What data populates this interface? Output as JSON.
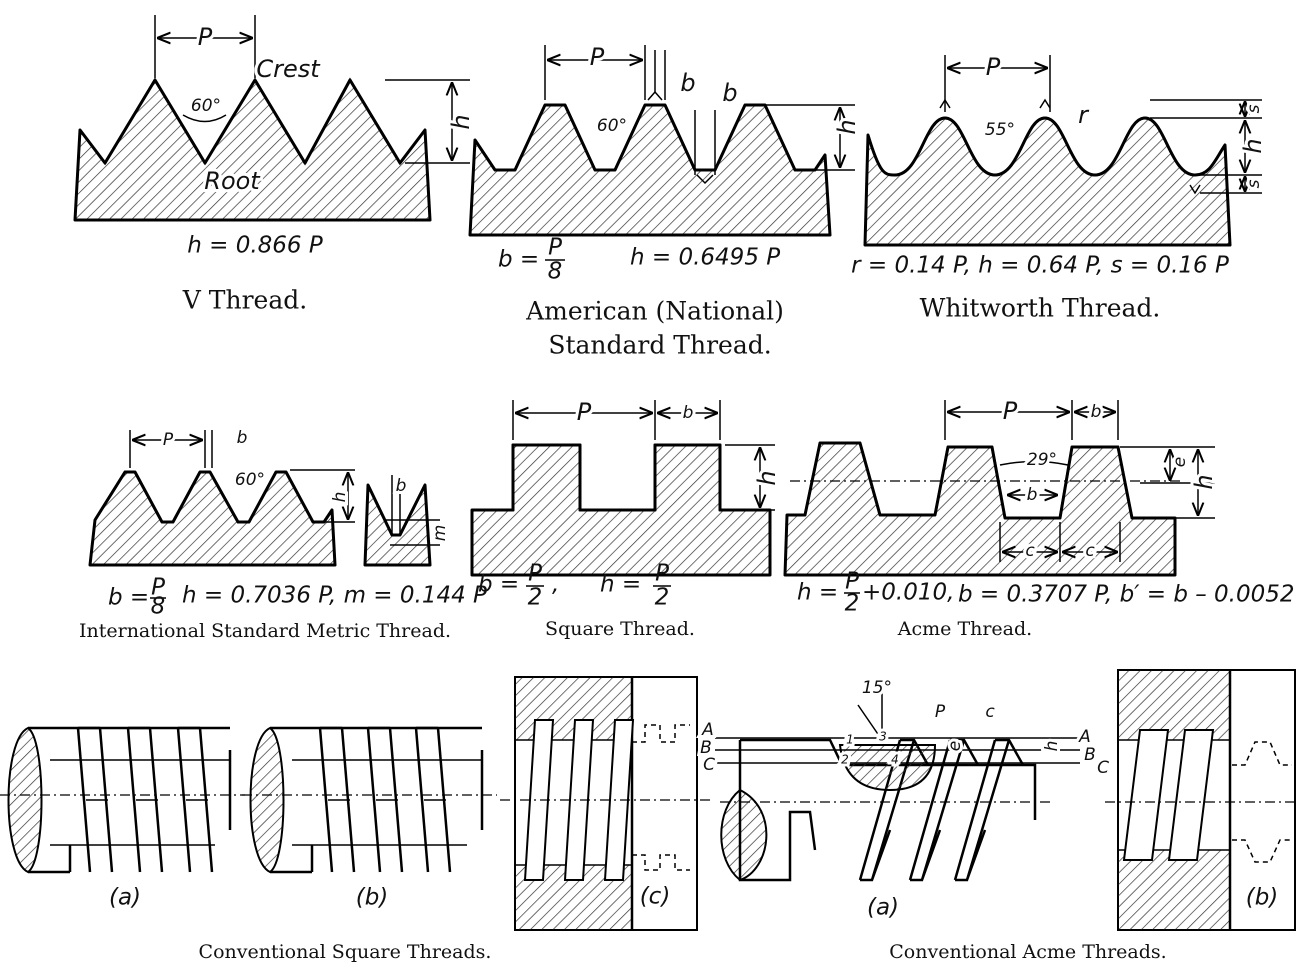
{
  "v_thread": {
    "labels": {
      "pitch": "P",
      "crest": "Crest",
      "angle": "60°",
      "root": "Root",
      "depth": "h"
    },
    "formula": "h = 0.866 P",
    "caption": "V Thread."
  },
  "american": {
    "labels": {
      "pitch": "P",
      "flat_top": "b",
      "flat_bottom": "b",
      "angle": "60°",
      "depth": "h"
    },
    "formula_b": {
      "lhs": "b =",
      "num": "P",
      "den": "8"
    },
    "formula_h": "h = 0.6495 P",
    "caption": [
      "American (National)",
      "Standard Thread."
    ]
  },
  "whitworth": {
    "labels": {
      "pitch": "P",
      "angle": "55°",
      "radius": "r",
      "s_top": "s",
      "depth": "h",
      "s_bottom": "s"
    },
    "formula": "r = 0.14 P,  h = 0.64 P,  s = 0.16 P",
    "caption": "Whitworth Thread."
  },
  "metric": {
    "labels": {
      "pitch": "P",
      "flat": "b",
      "angle": "60°",
      "depth": "h",
      "detail_b": "b",
      "detail_m": "m"
    },
    "formula_b": {
      "lhs": "b =",
      "num": "P",
      "den": "8"
    },
    "formula_rest": "h = 0.7036 P,   m = 0.144 P",
    "caption": "International Standard Metric Thread."
  },
  "square": {
    "labels": {
      "pitch": "P",
      "b": "b",
      "depth": "h"
    },
    "formula_b": {
      "lhs": "b =",
      "num": "P",
      "den": "2"
    },
    "formula_h": {
      "lhs": "h =",
      "num": "P",
      "den": "2"
    },
    "caption": "Square Thread."
  },
  "acme": {
    "labels": {
      "pitch": "P",
      "b_top": "b",
      "angle": "29°",
      "e": "e",
      "depth": "h",
      "b_mid": "b",
      "c1": "c",
      "c2": "c"
    },
    "formula_h": {
      "lhs": "h =",
      "num": "P",
      "den": "2",
      "rest": "+0.010,"
    },
    "formula_rest": "b = 0.3707 P,    b′ = b – 0.0052",
    "caption": "Acme Thread."
  },
  "conv_square": {
    "views": [
      "(a)",
      "(b)",
      "(c)"
    ],
    "caption": "Conventional Square Threads."
  },
  "conv_acme": {
    "labels": {
      "angle": "15°",
      "pitch": "P",
      "c": "c",
      "e": "e",
      "h": "h",
      "A_left": "A",
      "B_left": "B",
      "C_left": "C",
      "A_right": "A",
      "B_right": "B",
      "C_right": "C",
      "n1": "1",
      "n2": "2",
      "n3": "3",
      "n4": "4"
    },
    "views": [
      "(a)",
      "(b)"
    ],
    "caption": "Conventional Acme Threads."
  }
}
